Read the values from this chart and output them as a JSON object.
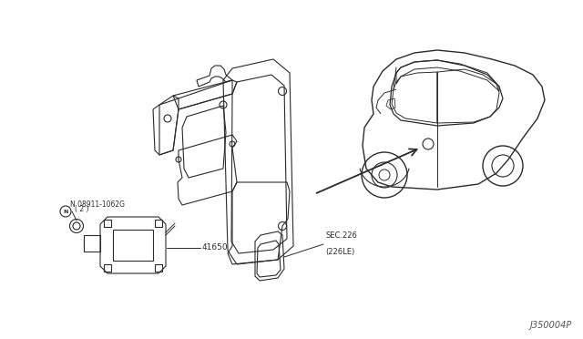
{
  "bg_color": "#ffffff",
  "line_color": "#2a2a2a",
  "fig_width": 6.4,
  "fig_height": 3.72,
  "dpi": 100,
  "footer": "J350004P",
  "bolt_label": "N 08911-1062G\n  ( 2 )",
  "module_label": "41650",
  "sec_label": "SEC.226\n(226LE)"
}
